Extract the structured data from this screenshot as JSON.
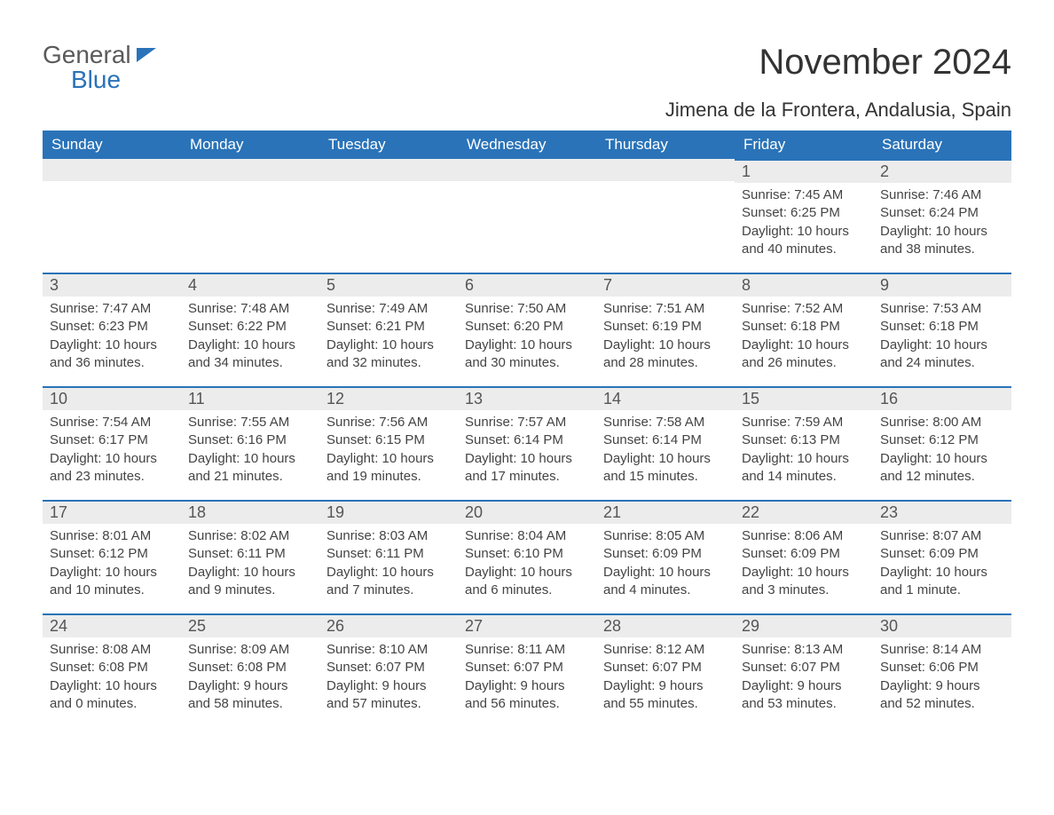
{
  "logo": {
    "line1": "General",
    "line2": "Blue"
  },
  "title": "November 2024",
  "location": "Jimena de la Frontera, Andalusia, Spain",
  "colors": {
    "brand_blue": "#2a73b8",
    "header_text": "#ffffff",
    "daybar_bg": "#ececec",
    "body_text": "#444444",
    "page_bg": "#ffffff"
  },
  "typography": {
    "title_fontsize": 40,
    "location_fontsize": 22,
    "weekday_fontsize": 17,
    "daynum_fontsize": 18,
    "body_fontsize": 15
  },
  "weekdays": [
    "Sunday",
    "Monday",
    "Tuesday",
    "Wednesday",
    "Thursday",
    "Friday",
    "Saturday"
  ],
  "weeks": [
    [
      {
        "day": "",
        "sunrise": "",
        "sunset": "",
        "daylight": ""
      },
      {
        "day": "",
        "sunrise": "",
        "sunset": "",
        "daylight": ""
      },
      {
        "day": "",
        "sunrise": "",
        "sunset": "",
        "daylight": ""
      },
      {
        "day": "",
        "sunrise": "",
        "sunset": "",
        "daylight": ""
      },
      {
        "day": "",
        "sunrise": "",
        "sunset": "",
        "daylight": ""
      },
      {
        "day": "1",
        "sunrise": "Sunrise: 7:45 AM",
        "sunset": "Sunset: 6:25 PM",
        "daylight": "Daylight: 10 hours and 40 minutes."
      },
      {
        "day": "2",
        "sunrise": "Sunrise: 7:46 AM",
        "sunset": "Sunset: 6:24 PM",
        "daylight": "Daylight: 10 hours and 38 minutes."
      }
    ],
    [
      {
        "day": "3",
        "sunrise": "Sunrise: 7:47 AM",
        "sunset": "Sunset: 6:23 PM",
        "daylight": "Daylight: 10 hours and 36 minutes."
      },
      {
        "day": "4",
        "sunrise": "Sunrise: 7:48 AM",
        "sunset": "Sunset: 6:22 PM",
        "daylight": "Daylight: 10 hours and 34 minutes."
      },
      {
        "day": "5",
        "sunrise": "Sunrise: 7:49 AM",
        "sunset": "Sunset: 6:21 PM",
        "daylight": "Daylight: 10 hours and 32 minutes."
      },
      {
        "day": "6",
        "sunrise": "Sunrise: 7:50 AM",
        "sunset": "Sunset: 6:20 PM",
        "daylight": "Daylight: 10 hours and 30 minutes."
      },
      {
        "day": "7",
        "sunrise": "Sunrise: 7:51 AM",
        "sunset": "Sunset: 6:19 PM",
        "daylight": "Daylight: 10 hours and 28 minutes."
      },
      {
        "day": "8",
        "sunrise": "Sunrise: 7:52 AM",
        "sunset": "Sunset: 6:18 PM",
        "daylight": "Daylight: 10 hours and 26 minutes."
      },
      {
        "day": "9",
        "sunrise": "Sunrise: 7:53 AM",
        "sunset": "Sunset: 6:18 PM",
        "daylight": "Daylight: 10 hours and 24 minutes."
      }
    ],
    [
      {
        "day": "10",
        "sunrise": "Sunrise: 7:54 AM",
        "sunset": "Sunset: 6:17 PM",
        "daylight": "Daylight: 10 hours and 23 minutes."
      },
      {
        "day": "11",
        "sunrise": "Sunrise: 7:55 AM",
        "sunset": "Sunset: 6:16 PM",
        "daylight": "Daylight: 10 hours and 21 minutes."
      },
      {
        "day": "12",
        "sunrise": "Sunrise: 7:56 AM",
        "sunset": "Sunset: 6:15 PM",
        "daylight": "Daylight: 10 hours and 19 minutes."
      },
      {
        "day": "13",
        "sunrise": "Sunrise: 7:57 AM",
        "sunset": "Sunset: 6:14 PM",
        "daylight": "Daylight: 10 hours and 17 minutes."
      },
      {
        "day": "14",
        "sunrise": "Sunrise: 7:58 AM",
        "sunset": "Sunset: 6:14 PM",
        "daylight": "Daylight: 10 hours and 15 minutes."
      },
      {
        "day": "15",
        "sunrise": "Sunrise: 7:59 AM",
        "sunset": "Sunset: 6:13 PM",
        "daylight": "Daylight: 10 hours and 14 minutes."
      },
      {
        "day": "16",
        "sunrise": "Sunrise: 8:00 AM",
        "sunset": "Sunset: 6:12 PM",
        "daylight": "Daylight: 10 hours and 12 minutes."
      }
    ],
    [
      {
        "day": "17",
        "sunrise": "Sunrise: 8:01 AM",
        "sunset": "Sunset: 6:12 PM",
        "daylight": "Daylight: 10 hours and 10 minutes."
      },
      {
        "day": "18",
        "sunrise": "Sunrise: 8:02 AM",
        "sunset": "Sunset: 6:11 PM",
        "daylight": "Daylight: 10 hours and 9 minutes."
      },
      {
        "day": "19",
        "sunrise": "Sunrise: 8:03 AM",
        "sunset": "Sunset: 6:11 PM",
        "daylight": "Daylight: 10 hours and 7 minutes."
      },
      {
        "day": "20",
        "sunrise": "Sunrise: 8:04 AM",
        "sunset": "Sunset: 6:10 PM",
        "daylight": "Daylight: 10 hours and 6 minutes."
      },
      {
        "day": "21",
        "sunrise": "Sunrise: 8:05 AM",
        "sunset": "Sunset: 6:09 PM",
        "daylight": "Daylight: 10 hours and 4 minutes."
      },
      {
        "day": "22",
        "sunrise": "Sunrise: 8:06 AM",
        "sunset": "Sunset: 6:09 PM",
        "daylight": "Daylight: 10 hours and 3 minutes."
      },
      {
        "day": "23",
        "sunrise": "Sunrise: 8:07 AM",
        "sunset": "Sunset: 6:09 PM",
        "daylight": "Daylight: 10 hours and 1 minute."
      }
    ],
    [
      {
        "day": "24",
        "sunrise": "Sunrise: 8:08 AM",
        "sunset": "Sunset: 6:08 PM",
        "daylight": "Daylight: 10 hours and 0 minutes."
      },
      {
        "day": "25",
        "sunrise": "Sunrise: 8:09 AM",
        "sunset": "Sunset: 6:08 PM",
        "daylight": "Daylight: 9 hours and 58 minutes."
      },
      {
        "day": "26",
        "sunrise": "Sunrise: 8:10 AM",
        "sunset": "Sunset: 6:07 PM",
        "daylight": "Daylight: 9 hours and 57 minutes."
      },
      {
        "day": "27",
        "sunrise": "Sunrise: 8:11 AM",
        "sunset": "Sunset: 6:07 PM",
        "daylight": "Daylight: 9 hours and 56 minutes."
      },
      {
        "day": "28",
        "sunrise": "Sunrise: 8:12 AM",
        "sunset": "Sunset: 6:07 PM",
        "daylight": "Daylight: 9 hours and 55 minutes."
      },
      {
        "day": "29",
        "sunrise": "Sunrise: 8:13 AM",
        "sunset": "Sunset: 6:07 PM",
        "daylight": "Daylight: 9 hours and 53 minutes."
      },
      {
        "day": "30",
        "sunrise": "Sunrise: 8:14 AM",
        "sunset": "Sunset: 6:06 PM",
        "daylight": "Daylight: 9 hours and 52 minutes."
      }
    ]
  ]
}
